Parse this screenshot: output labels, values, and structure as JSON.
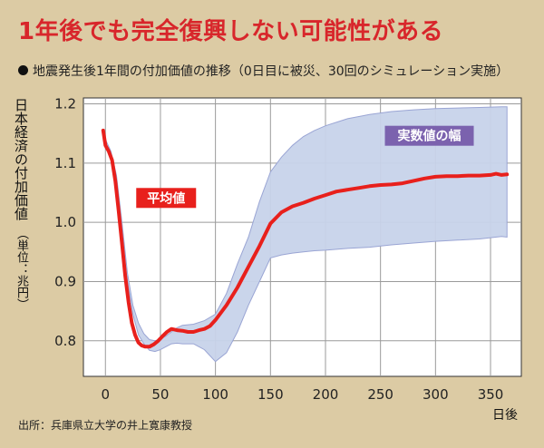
{
  "header": {
    "title": "1年後でも完全復興しない可能性がある",
    "subtitle": "地震発生後1年間の付加価値の推移（0日目に被災、30回のシミュレーション実施）"
  },
  "source": "出所：兵庫県立大学の井上寛康教授",
  "colors": {
    "title": "#d8262b",
    "mean_line": "#e8201c",
    "band_fill": "#c7d3ea",
    "band_stroke": "#9aa5d4",
    "callout_purple": "#7b62ae",
    "background": "#dccba4",
    "plot_background": "#ffffff"
  },
  "chart_data": {
    "type": "line",
    "title": "1年後でも完全復興しない可能性がある",
    "subtitle": "地震発生後1年間の付加価値の推移（0日目に被災、30回のシミュレーション実施）",
    "ylabel": "日本経済の付加価値",
    "yunit": "（単位：兆円）",
    "xlabel": "日後",
    "xlim": [
      -20,
      378
    ],
    "ylim": [
      0.74,
      1.21
    ],
    "xticks": [
      0,
      50,
      100,
      150,
      200,
      250,
      300,
      350
    ],
    "yticks": [
      0.8,
      0.9,
      1.0,
      1.1,
      1.2
    ],
    "ytick_labels": [
      "0.8",
      "0.9",
      "1.0",
      "1.1",
      "1.2"
    ],
    "grid": true,
    "series": [
      {
        "name": "平均値",
        "label": "平均値",
        "kind": "line",
        "x": [
          -2,
          0,
          3,
          6,
          9,
          12,
          15,
          18,
          21,
          24,
          27,
          30,
          33,
          36,
          40,
          44,
          48,
          52,
          56,
          60,
          65,
          70,
          75,
          80,
          85,
          90,
          95,
          100,
          110,
          120,
          130,
          140,
          150,
          160,
          170,
          180,
          190,
          200,
          210,
          220,
          230,
          240,
          250,
          260,
          270,
          280,
          290,
          300,
          310,
          320,
          330,
          340,
          350,
          355,
          360,
          365
        ],
        "y": [
          1.155,
          1.13,
          1.12,
          1.105,
          1.07,
          1.02,
          0.965,
          0.91,
          0.865,
          0.83,
          0.81,
          0.797,
          0.792,
          0.79,
          0.79,
          0.794,
          0.8,
          0.808,
          0.815,
          0.82,
          0.818,
          0.817,
          0.815,
          0.815,
          0.818,
          0.82,
          0.825,
          0.835,
          0.86,
          0.89,
          0.925,
          0.96,
          0.998,
          1.017,
          1.027,
          1.033,
          1.04,
          1.046,
          1.052,
          1.055,
          1.058,
          1.061,
          1.063,
          1.064,
          1.066,
          1.07,
          1.074,
          1.077,
          1.078,
          1.078,
          1.079,
          1.079,
          1.08,
          1.082,
          1.08,
          1.081
        ]
      },
      {
        "name": "実数値の幅",
        "label": "実数値の幅",
        "kind": "band",
        "x": [
          -2,
          0,
          5,
          10,
          15,
          20,
          25,
          30,
          35,
          40,
          45,
          50,
          55,
          60,
          65,
          70,
          80,
          90,
          100,
          110,
          120,
          130,
          140,
          150,
          160,
          170,
          180,
          190,
          200,
          220,
          240,
          260,
          280,
          300,
          320,
          340,
          360,
          365
        ],
        "upper": [
          1.155,
          1.14,
          1.12,
          1.08,
          1.0,
          0.915,
          0.86,
          0.83,
          0.812,
          0.802,
          0.8,
          0.803,
          0.808,
          0.815,
          0.822,
          0.826,
          0.828,
          0.834,
          0.845,
          0.88,
          0.93,
          0.975,
          1.035,
          1.085,
          1.11,
          1.13,
          1.145,
          1.155,
          1.163,
          1.175,
          1.182,
          1.187,
          1.19,
          1.192,
          1.193,
          1.194,
          1.195,
          1.195
        ],
        "lower": [
          1.155,
          1.13,
          1.11,
          1.05,
          0.975,
          0.9,
          0.845,
          0.81,
          0.795,
          0.784,
          0.782,
          0.785,
          0.79,
          0.795,
          0.796,
          0.795,
          0.795,
          0.785,
          0.765,
          0.78,
          0.815,
          0.86,
          0.9,
          0.94,
          0.945,
          0.948,
          0.95,
          0.952,
          0.953,
          0.956,
          0.958,
          0.962,
          0.965,
          0.968,
          0.97,
          0.972,
          0.976,
          0.975
        ]
      }
    ]
  }
}
